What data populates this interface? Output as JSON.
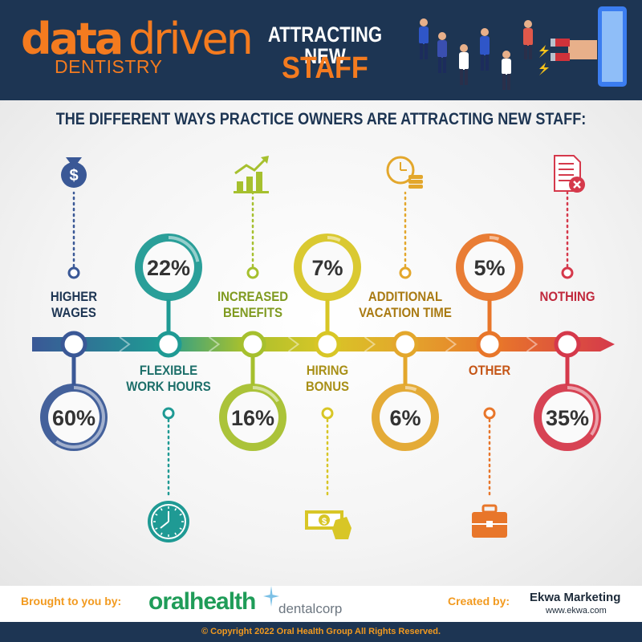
{
  "header": {
    "logo_data": "data",
    "logo_driven": "driven",
    "logo_dentistry": "DENTISTRY",
    "title_line1": "ATTRACTING NEW",
    "title_line2": "STAFF"
  },
  "subheading": "THE DIFFERENT WAYS PRACTICE OWNERS ARE ATTRACTING NEW STAFF:",
  "chart_data": {
    "type": "bar",
    "categories": [
      "HIGHER WAGES",
      "FLEXIBLE WORK HOURS",
      "INCREASED BENEFITS",
      "HIRING BONUS",
      "ADDITIONAL VACATION TIME",
      "OTHER",
      "NOTHING"
    ],
    "label_lines": [
      [
        "HIGHER",
        "WAGES"
      ],
      [
        "FLEXIBLE",
        "WORK HOURS"
      ],
      [
        "INCREASED",
        "BENEFITS"
      ],
      [
        "HIRING",
        "BONUS"
      ],
      [
        "ADDITIONAL",
        "VACATION TIME"
      ],
      [
        "OTHER"
      ],
      [
        "NOTHING"
      ]
    ],
    "values": [
      60,
      22,
      16,
      7,
      6,
      5,
      35
    ],
    "value_labels": [
      "60%",
      "22%",
      "16%",
      "7%",
      "6%",
      "5%",
      "35%"
    ],
    "value_position": [
      "bottom",
      "top",
      "bottom",
      "top",
      "bottom",
      "top",
      "bottom"
    ],
    "icons": [
      "money-bag-icon",
      "clock-icon",
      "growth-chart-icon",
      "cash-hand-icon",
      "time-money-icon",
      "briefcase-icon",
      "cancelled-document-icon"
    ],
    "colors": [
      "#3a5896",
      "#1f9a94",
      "#a6c02e",
      "#d8c626",
      "#e3a72c",
      "#e8762a",
      "#d5394b"
    ],
    "label_colors": [
      "#1d3553",
      "#1d6f6a",
      "#7f9a1f",
      "#a88f16",
      "#a97a12",
      "#c55516",
      "#c0283c"
    ]
  },
  "footer": {
    "brought_label": "Brought to you by:",
    "sponsor1": "oralhealth",
    "sponsor2": "dentalcorp",
    "created_label": "Created by:",
    "creator": "Ekwa Marketing",
    "creator_url": "www.ekwa.com",
    "copyright": "© Copyright 2022 Oral Health Group All Rights Reserved."
  }
}
